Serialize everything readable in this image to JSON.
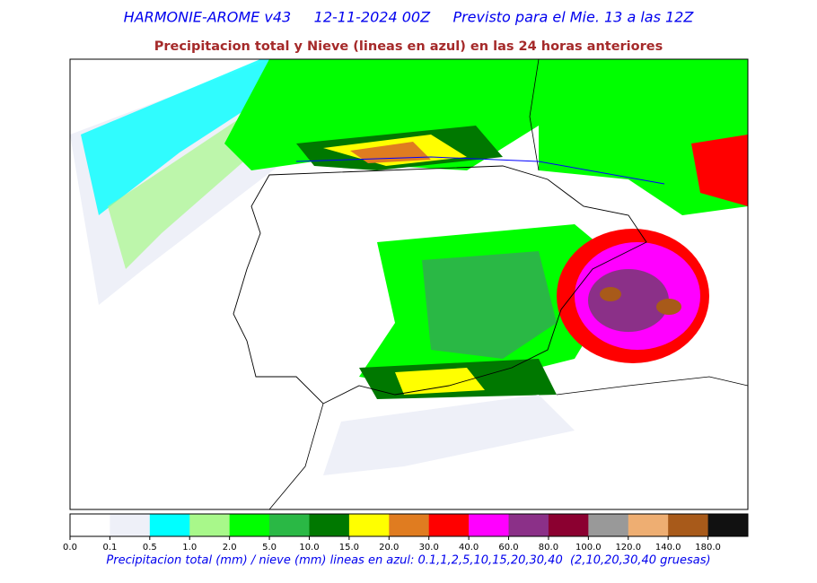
{
  "header": {
    "title": "HARMONIE-AROME v43     12-11-2024 00Z     Previsto para el Mie. 13 a las 12Z",
    "subtitle": "Precipitacion total y Nieve (lineas en azul) en las 24 horas anteriores"
  },
  "colorbar": {
    "colors": [
      "#ffffff",
      "#eef0f8",
      "#00ffff",
      "#a8f88a",
      "#00ff00",
      "#2ab845",
      "#007800",
      "#ffff00",
      "#e07c20",
      "#ff0000",
      "#ff00ff",
      "#8b3088",
      "#8b0030",
      "#999999",
      "#eeae72",
      "#a85a1a",
      "#111111"
    ],
    "ticks": [
      "0.0",
      "0.1",
      "0.5",
      "1.0",
      "2.0",
      "5.0",
      "10.0",
      "15.0",
      "20.0",
      "30.0",
      "40.0",
      "60.0",
      "80.0",
      "100.0",
      "120.0",
      "140.0",
      "180.0"
    ]
  },
  "caption": "Precipitacion total (mm) / nieve (mm) lineas en azul: 0.1,1,2,5,10,15,20,30,40  (2,10,20,30,40 gruesas)"
}
